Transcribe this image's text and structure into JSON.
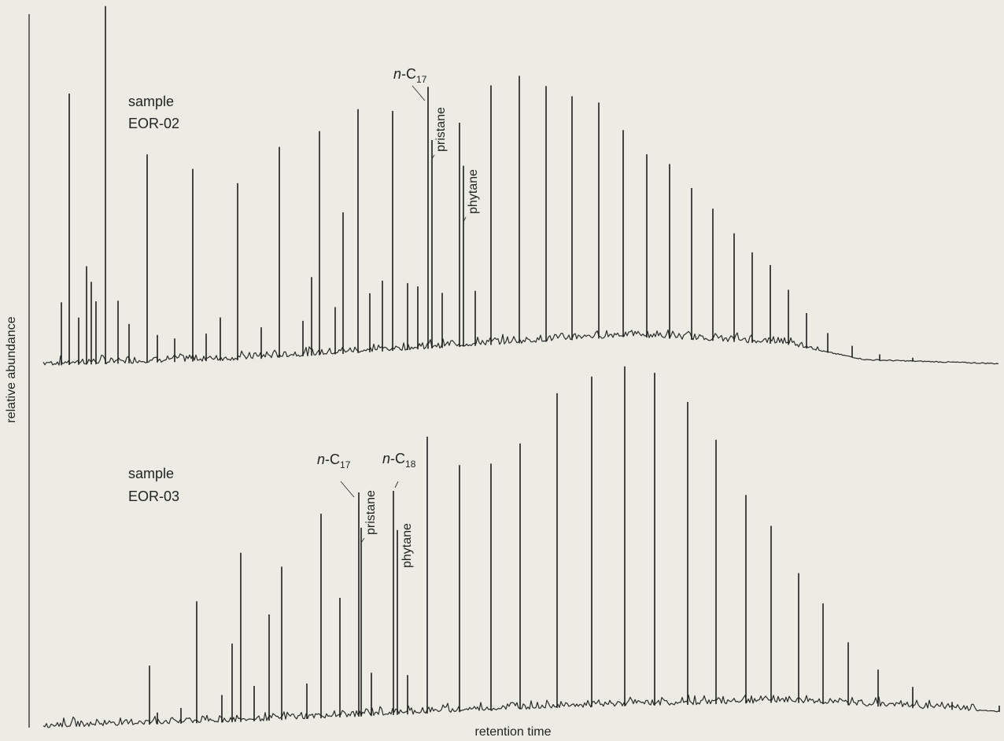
{
  "chart_data": {
    "type": "line",
    "ylabel": "relative abundance",
    "xlabel": "retention time",
    "grid": false,
    "legend": "none",
    "panels": [
      {
        "sample_label": [
          "sample",
          "EOR-02"
        ],
        "peaks": [
          {
            "x": 78,
            "h": 80
          },
          {
            "x": 88,
            "h": 345
          },
          {
            "x": 100,
            "h": 60
          },
          {
            "x": 110,
            "h": 125
          },
          {
            "x": 116,
            "h": 105
          },
          {
            "x": 122,
            "h": 80
          },
          {
            "x": 134,
            "h": 455
          },
          {
            "x": 150,
            "h": 80
          },
          {
            "x": 164,
            "h": 50
          },
          {
            "x": 187,
            "h": 265
          },
          {
            "x": 200,
            "h": 35
          },
          {
            "x": 222,
            "h": 30
          },
          {
            "x": 245,
            "h": 245
          },
          {
            "x": 262,
            "h": 35
          },
          {
            "x": 280,
            "h": 55
          },
          {
            "x": 302,
            "h": 225
          },
          {
            "x": 332,
            "h": 40
          },
          {
            "x": 355,
            "h": 268
          },
          {
            "x": 385,
            "h": 45
          },
          {
            "x": 396,
            "h": 100
          },
          {
            "x": 406,
            "h": 285
          },
          {
            "x": 426,
            "h": 60
          },
          {
            "x": 436,
            "h": 180
          },
          {
            "x": 455,
            "h": 310
          },
          {
            "x": 470,
            "h": 75
          },
          {
            "x": 486,
            "h": 90
          },
          {
            "x": 499,
            "h": 305
          },
          {
            "x": 518,
            "h": 85
          },
          {
            "x": 531,
            "h": 80
          },
          {
            "x": 544,
            "h": 333
          },
          {
            "x": 549,
            "h": 265
          },
          {
            "x": 562,
            "h": 70
          },
          {
            "x": 584,
            "h": 285
          },
          {
            "x": 589,
            "h": 230
          },
          {
            "x": 604,
            "h": 70
          },
          {
            "x": 624,
            "h": 330
          },
          {
            "x": 660,
            "h": 340
          },
          {
            "x": 694,
            "h": 325
          },
          {
            "x": 727,
            "h": 310
          },
          {
            "x": 761,
            "h": 300
          },
          {
            "x": 792,
            "h": 263
          },
          {
            "x": 822,
            "h": 233
          },
          {
            "x": 851,
            "h": 222
          },
          {
            "x": 879,
            "h": 193
          },
          {
            "x": 906,
            "h": 168
          },
          {
            "x": 933,
            "h": 138
          },
          {
            "x": 956,
            "h": 115
          },
          {
            "x": 979,
            "h": 100
          },
          {
            "x": 1002,
            "h": 70
          },
          {
            "x": 1025,
            "h": 45
          },
          {
            "x": 1052,
            "h": 25
          },
          {
            "x": 1083,
            "h": 15
          },
          {
            "x": 1118,
            "h": 8
          },
          {
            "x": 1160,
            "h": 5
          }
        ],
        "annotations": [
          {
            "id": "nc17",
            "prefix": "n",
            "base": "-C",
            "sub": "17",
            "peak_x": 544
          },
          {
            "id": "pristane",
            "text": "pristane",
            "peak_x": 549
          },
          {
            "id": "phytane",
            "text": "phytane",
            "peak_x": 589
          }
        ]
      },
      {
        "sample_label": [
          "sample",
          "EOR-03"
        ],
        "peaks": [
          {
            "x": 190,
            "h": 75
          },
          {
            "x": 200,
            "h": 15
          },
          {
            "x": 230,
            "h": 20
          },
          {
            "x": 250,
            "h": 155
          },
          {
            "x": 282,
            "h": 35
          },
          {
            "x": 295,
            "h": 100
          },
          {
            "x": 306,
            "h": 215
          },
          {
            "x": 323,
            "h": 45
          },
          {
            "x": 342,
            "h": 135
          },
          {
            "x": 358,
            "h": 195
          },
          {
            "x": 390,
            "h": 45
          },
          {
            "x": 408,
            "h": 260
          },
          {
            "x": 432,
            "h": 152
          },
          {
            "x": 456,
            "h": 285
          },
          {
            "x": 459,
            "h": 240
          },
          {
            "x": 472,
            "h": 55
          },
          {
            "x": 500,
            "h": 285
          },
          {
            "x": 505,
            "h": 235
          },
          {
            "x": 518,
            "h": 50
          },
          {
            "x": 543,
            "h": 352
          },
          {
            "x": 584,
            "h": 314
          },
          {
            "x": 624,
            "h": 314
          },
          {
            "x": 661,
            "h": 338
          },
          {
            "x": 708,
            "h": 400
          },
          {
            "x": 752,
            "h": 420
          },
          {
            "x": 794,
            "h": 432
          },
          {
            "x": 832,
            "h": 423
          },
          {
            "x": 874,
            "h": 385
          },
          {
            "x": 910,
            "h": 336
          },
          {
            "x": 948,
            "h": 265
          },
          {
            "x": 980,
            "h": 225
          },
          {
            "x": 1015,
            "h": 165
          },
          {
            "x": 1046,
            "h": 128
          },
          {
            "x": 1078,
            "h": 80
          },
          {
            "x": 1116,
            "h": 47
          },
          {
            "x": 1160,
            "h": 27
          },
          {
            "x": 1210,
            "h": 10
          },
          {
            "x": 1270,
            "h": 8
          }
        ],
        "annotations": [
          {
            "id": "nc17",
            "prefix": "n",
            "base": "-C",
            "sub": "17",
            "peak_x": 456
          },
          {
            "id": "pristane",
            "text": "pristane",
            "peak_x": 459
          },
          {
            "id": "nc18",
            "prefix": "n",
            "base": "-C",
            "sub": "18",
            "peak_x": 500
          },
          {
            "id": "phytane",
            "text": "phytane",
            "peak_x": 505
          }
        ]
      }
    ]
  }
}
